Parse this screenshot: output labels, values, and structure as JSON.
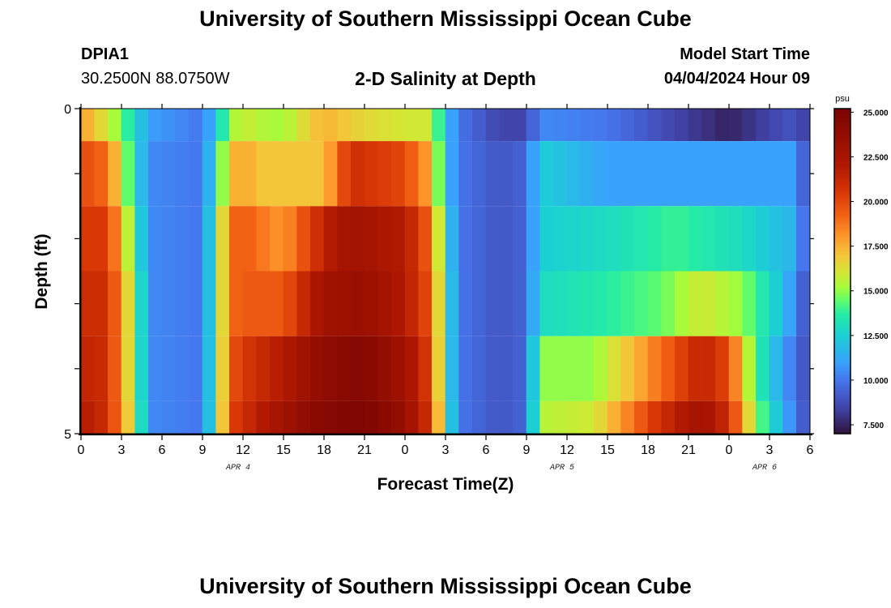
{
  "header": {
    "title": "University of Southern Mississippi Ocean Cube",
    "station_id": "DPIA1",
    "coords": "30.2500N  88.0750W",
    "subtitle": "2-D Salinity at Depth",
    "model_label": "Model Start Time",
    "model_time": "04/04/2024 Hour 09"
  },
  "footer": {
    "title": "University of Southern Mississippi Ocean Cube"
  },
  "colors": {
    "background": "#ffffff",
    "axis": "#000000"
  },
  "chart_data": {
    "type": "heatmap",
    "xlabel": "Forecast Time(Z)",
    "ylabel": "Depth (ft)",
    "x_tick_labels": [
      "0",
      "3",
      "6",
      "9",
      "12",
      "15",
      "18",
      "21",
      "0",
      "3",
      "6",
      "9",
      "12",
      "15",
      "18",
      "21",
      "0",
      "3",
      "6"
    ],
    "date_labels": [
      {
        "text": "APR 4",
        "tick_index": 4
      },
      {
        "text": "APR 5",
        "tick_index": 12
      },
      {
        "text": "APR 6",
        "tick_index": 17
      }
    ],
    "y_tick_labels": [
      "0",
      "5"
    ],
    "ylim": [
      0,
      5
    ],
    "y_minor_ticks": 5,
    "x_hours_span": 54,
    "colorbar": {
      "unit": "psu",
      "range": [
        7,
        25.2
      ],
      "tick_labels": [
        "25.000",
        "22.500",
        "20.000",
        "17.500",
        "15.000",
        "12.500",
        "10.000",
        "7.500"
      ],
      "tick_values": [
        25,
        22.5,
        20,
        17.5,
        15,
        12.5,
        10,
        7.5
      ],
      "stops": [
        {
          "v": 7.0,
          "c": "#30123b"
        },
        {
          "v": 8.5,
          "c": "#4145ab"
        },
        {
          "v": 10.0,
          "c": "#4675ed"
        },
        {
          "v": 11.0,
          "c": "#39a2fc"
        },
        {
          "v": 12.5,
          "c": "#1bcfd4"
        },
        {
          "v": 13.7,
          "c": "#24eca6"
        },
        {
          "v": 14.5,
          "c": "#61fc6c"
        },
        {
          "v": 15.2,
          "c": "#a4fc3b"
        },
        {
          "v": 16.0,
          "c": "#d1e834"
        },
        {
          "v": 17.0,
          "c": "#f3c63a"
        },
        {
          "v": 18.0,
          "c": "#fe9b2d"
        },
        {
          "v": 19.2,
          "c": "#f36315"
        },
        {
          "v": 20.5,
          "c": "#d93806"
        },
        {
          "v": 22.0,
          "c": "#b11901"
        },
        {
          "v": 25.2,
          "c": "#7a0403"
        }
      ]
    },
    "rows": [
      {
        "depth_range": [
          0,
          0.5
        ],
        "keypoints": [
          [
            0,
            18
          ],
          [
            2,
            16
          ],
          [
            4,
            13
          ],
          [
            5,
            11
          ],
          [
            9,
            10
          ],
          [
            10,
            12
          ],
          [
            11,
            15
          ],
          [
            12,
            16
          ],
          [
            13,
            15.5
          ],
          [
            15,
            15.2
          ],
          [
            18,
            17.5
          ],
          [
            21,
            16.5
          ],
          [
            24,
            16
          ],
          [
            26,
            16
          ],
          [
            27,
            12
          ],
          [
            28,
            10
          ],
          [
            29,
            9.5
          ],
          [
            30,
            9
          ],
          [
            31,
            8.5
          ],
          [
            33,
            8.5
          ],
          [
            34,
            10.5
          ],
          [
            39,
            10
          ],
          [
            44,
            8.5
          ],
          [
            48,
            7.5
          ],
          [
            51,
            8.5
          ],
          [
            53,
            9
          ],
          [
            54,
            8
          ]
        ]
      },
      {
        "depth_range": [
          0.5,
          1.5
        ],
        "keypoints": [
          [
            0,
            20
          ],
          [
            2,
            19
          ],
          [
            4,
            13
          ],
          [
            5,
            10.5
          ],
          [
            9,
            10
          ],
          [
            10,
            13
          ],
          [
            11,
            17
          ],
          [
            12,
            18
          ],
          [
            13,
            17
          ],
          [
            18,
            17
          ],
          [
            20,
            21
          ],
          [
            24,
            20
          ],
          [
            26,
            17.5
          ],
          [
            27,
            12
          ],
          [
            28,
            10
          ],
          [
            31,
            9
          ],
          [
            33,
            9.5
          ],
          [
            34,
            12.5
          ],
          [
            39,
            11
          ],
          [
            53,
            11
          ],
          [
            54,
            8
          ]
        ]
      },
      {
        "depth_range": [
          1.5,
          2.5
        ],
        "keypoints": [
          [
            0,
            20.5
          ],
          [
            2,
            20.5
          ],
          [
            4,
            14
          ],
          [
            5,
            10.5
          ],
          [
            9,
            10
          ],
          [
            10,
            14
          ],
          [
            11,
            19
          ],
          [
            12,
            19.5
          ],
          [
            15,
            18
          ],
          [
            18,
            21.5
          ],
          [
            20,
            23
          ],
          [
            24,
            22
          ],
          [
            26,
            19
          ],
          [
            27,
            13
          ],
          [
            28,
            10
          ],
          [
            31,
            9
          ],
          [
            33,
            9.5
          ],
          [
            34,
            12.5
          ],
          [
            39,
            13
          ],
          [
            44,
            14
          ],
          [
            49,
            13
          ],
          [
            53,
            11.5
          ],
          [
            54,
            8.5
          ]
        ]
      },
      {
        "depth_range": [
          2.5,
          3.5
        ],
        "keypoints": [
          [
            0,
            21
          ],
          [
            2,
            21
          ],
          [
            4,
            15
          ],
          [
            5,
            10.5
          ],
          [
            9,
            10
          ],
          [
            10,
            14
          ],
          [
            11,
            19
          ],
          [
            12,
            19.5
          ],
          [
            15,
            19.5
          ],
          [
            18,
            23
          ],
          [
            21,
            23.5
          ],
          [
            24,
            22
          ],
          [
            26,
            19.5
          ],
          [
            27,
            13.5
          ],
          [
            28,
            10
          ],
          [
            31,
            9
          ],
          [
            33,
            9.5
          ],
          [
            34,
            13
          ],
          [
            38,
            13.5
          ],
          [
            43,
            14.5
          ],
          [
            46,
            16
          ],
          [
            49,
            15
          ],
          [
            52,
            12
          ],
          [
            54,
            8.5
          ]
        ]
      },
      {
        "depth_range": [
          3.5,
          4.5
        ],
        "keypoints": [
          [
            0,
            21.5
          ],
          [
            2,
            21
          ],
          [
            4,
            15
          ],
          [
            5,
            10.5
          ],
          [
            9,
            10
          ],
          [
            10,
            14
          ],
          [
            11,
            19.5
          ],
          [
            12,
            20.5
          ],
          [
            15,
            22
          ],
          [
            18,
            24
          ],
          [
            21,
            24.5
          ],
          [
            24,
            23
          ],
          [
            26,
            20
          ],
          [
            27,
            13.5
          ],
          [
            28,
            10
          ],
          [
            31,
            9
          ],
          [
            33,
            9.5
          ],
          [
            34,
            15
          ],
          [
            38,
            15
          ],
          [
            43,
            19
          ],
          [
            46,
            21.5
          ],
          [
            48,
            20
          ],
          [
            50,
            14
          ],
          [
            52,
            11
          ],
          [
            54,
            8.5
          ]
        ]
      },
      {
        "depth_range": [
          4.5,
          5
        ],
        "keypoints": [
          [
            0,
            22
          ],
          [
            2,
            21
          ],
          [
            4,
            15.5
          ],
          [
            5,
            10.5
          ],
          [
            9,
            10
          ],
          [
            10,
            14
          ],
          [
            11,
            20
          ],
          [
            12,
            21
          ],
          [
            15,
            23
          ],
          [
            18,
            24.5
          ],
          [
            21,
            25
          ],
          [
            24,
            23.5
          ],
          [
            26,
            20.5
          ],
          [
            27,
            14
          ],
          [
            28,
            10
          ],
          [
            31,
            9
          ],
          [
            33,
            9.5
          ],
          [
            34,
            15.5
          ],
          [
            38,
            16
          ],
          [
            43,
            21
          ],
          [
            46,
            23
          ],
          [
            48,
            21
          ],
          [
            50,
            15
          ],
          [
            52,
            11.5
          ],
          [
            54,
            8.5
          ]
        ]
      }
    ]
  }
}
